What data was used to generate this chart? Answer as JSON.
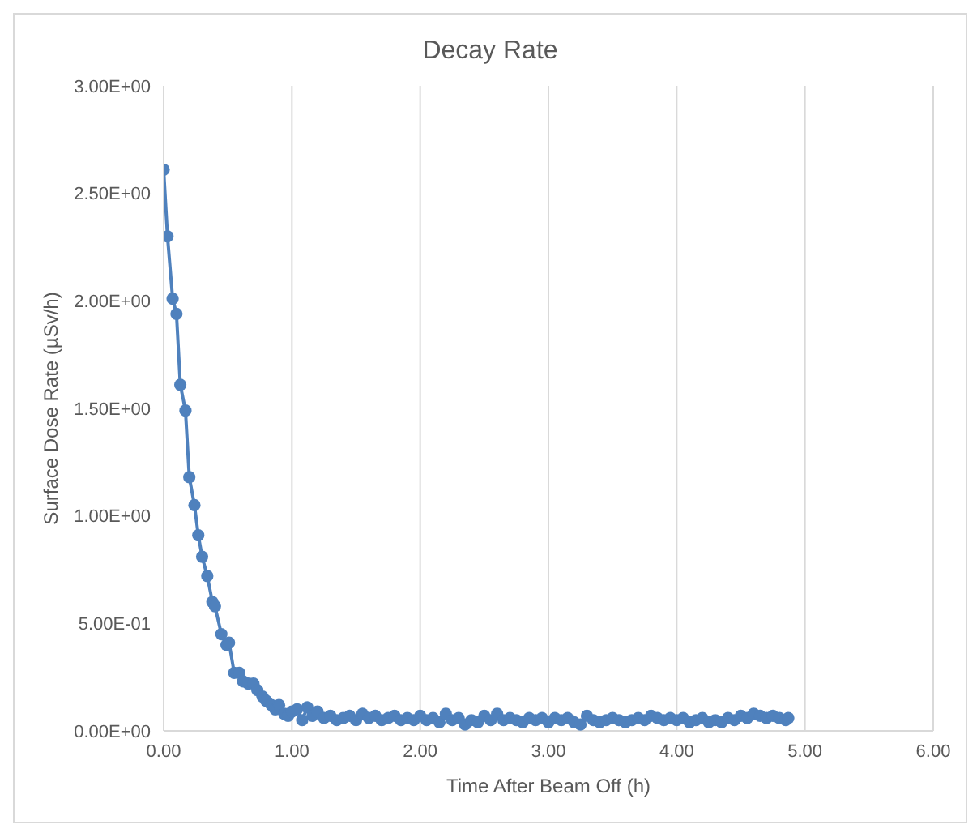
{
  "chart_data": {
    "type": "line",
    "title": "Decay Rate",
    "xlabel": "Time  After Beam Off (h)",
    "ylabel": "Surface Dose Rate (µSv/h)",
    "xlim": [
      0,
      6
    ],
    "xticks": [
      {
        "value": 0,
        "label": "0.00"
      },
      {
        "value": 1,
        "label": "1.00"
      },
      {
        "value": 2,
        "label": "2.00"
      },
      {
        "value": 3,
        "label": "3.00"
      },
      {
        "value": 4,
        "label": "4.00"
      },
      {
        "value": 5,
        "label": "5.00"
      },
      {
        "value": 6,
        "label": "6.00"
      }
    ],
    "ylim": [
      0,
      3
    ],
    "yticks": [
      {
        "value": 0,
        "label": "0.00E+00"
      },
      {
        "value": 0.5,
        "label": "5.00E-01"
      },
      {
        "value": 1,
        "label": "1.00E+00"
      },
      {
        "value": 1.5,
        "label": "1.50E+00"
      },
      {
        "value": 2,
        "label": "2.00E+00"
      },
      {
        "value": 2.5,
        "label": "2.50E+00"
      },
      {
        "value": 3,
        "label": "3.00E+00"
      }
    ],
    "grid": "x",
    "marker": "circle",
    "line_style": "solid",
    "series": [
      {
        "color": "#4f81bd",
        "x": [
          0,
          0.03,
          0.07,
          0.1,
          0.13,
          0.17,
          0.2,
          0.24,
          0.27,
          0.3,
          0.34,
          0.38,
          0.4,
          0.45,
          0.49,
          0.51,
          0.55,
          0.59,
          0.62,
          0.66,
          0.7,
          0.73,
          0.77,
          0.8,
          0.84,
          0.87,
          0.9,
          0.94,
          0.97,
          1.0,
          1.04,
          1.08,
          1.12,
          1.16,
          1.2,
          1.25,
          1.3,
          1.35,
          1.4,
          1.45,
          1.5,
          1.55,
          1.6,
          1.65,
          1.7,
          1.75,
          1.8,
          1.85,
          1.9,
          1.95,
          2.0,
          2.05,
          2.1,
          2.15,
          2.2,
          2.25,
          2.3,
          2.35,
          2.4,
          2.45,
          2.5,
          2.55,
          2.6,
          2.65,
          2.7,
          2.75,
          2.8,
          2.85,
          2.9,
          2.95,
          3.0,
          3.05,
          3.1,
          3.15,
          3.2,
          3.25,
          3.3,
          3.35,
          3.4,
          3.45,
          3.5,
          3.55,
          3.6,
          3.65,
          3.7,
          3.75,
          3.8,
          3.85,
          3.9,
          3.95,
          4.0,
          4.05,
          4.1,
          4.15,
          4.2,
          4.25,
          4.3,
          4.35,
          4.4,
          4.45,
          4.5,
          4.55,
          4.6,
          4.65,
          4.7,
          4.75,
          4.8,
          4.85,
          4.87
        ],
        "values": [
          2.61,
          2.3,
          2.01,
          1.94,
          1.61,
          1.49,
          1.18,
          1.05,
          0.91,
          0.81,
          0.72,
          0.6,
          0.58,
          0.45,
          0.4,
          0.41,
          0.27,
          0.27,
          0.23,
          0.22,
          0.22,
          0.19,
          0.16,
          0.14,
          0.12,
          0.1,
          0.12,
          0.08,
          0.07,
          0.09,
          0.1,
          0.05,
          0.11,
          0.07,
          0.09,
          0.06,
          0.07,
          0.05,
          0.06,
          0.07,
          0.05,
          0.08,
          0.06,
          0.07,
          0.05,
          0.06,
          0.07,
          0.05,
          0.06,
          0.05,
          0.07,
          0.05,
          0.06,
          0.04,
          0.08,
          0.05,
          0.06,
          0.03,
          0.05,
          0.04,
          0.07,
          0.05,
          0.08,
          0.05,
          0.06,
          0.05,
          0.04,
          0.06,
          0.05,
          0.06,
          0.04,
          0.06,
          0.05,
          0.06,
          0.04,
          0.03,
          0.07,
          0.05,
          0.04,
          0.05,
          0.06,
          0.05,
          0.04,
          0.05,
          0.06,
          0.05,
          0.07,
          0.06,
          0.05,
          0.06,
          0.05,
          0.06,
          0.04,
          0.05,
          0.06,
          0.04,
          0.05,
          0.04,
          0.06,
          0.05,
          0.07,
          0.06,
          0.08,
          0.07,
          0.06,
          0.07,
          0.06,
          0.05,
          0.06
        ]
      }
    ]
  }
}
